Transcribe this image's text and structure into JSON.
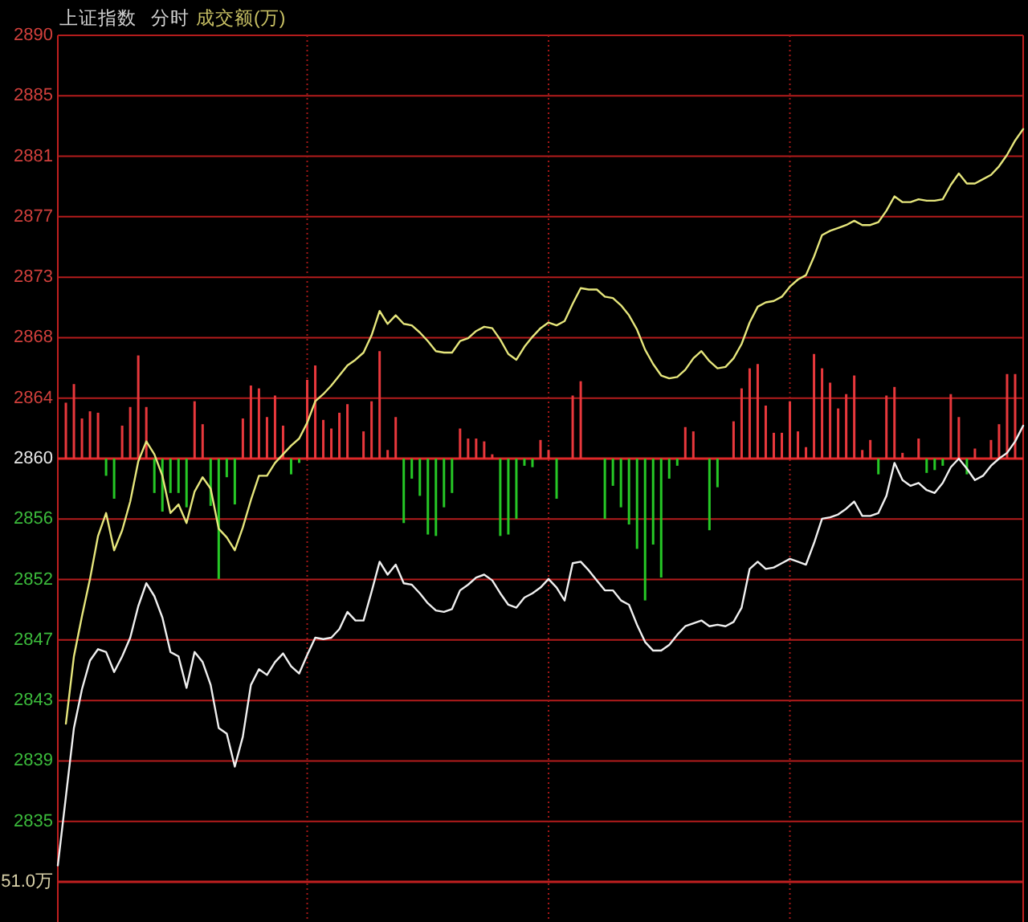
{
  "chart_data": {
    "type": "line",
    "title": "上证指数",
    "subtitle": "分时",
    "annotations": [
      "成交额(万)",
      "51.0万"
    ],
    "categories": [
      null,
      null,
      null,
      null,
      null,
      null,
      null,
      null,
      null,
      null,
      null,
      null,
      null,
      null,
      null,
      null,
      null,
      null,
      null,
      null,
      null,
      null,
      null,
      null,
      null,
      null,
      null,
      null,
      null,
      null,
      null,
      null,
      null,
      null,
      null,
      null,
      null,
      null,
      null,
      null,
      null,
      null,
      null,
      null,
      null,
      null,
      null,
      null,
      null,
      null,
      null,
      null,
      null,
      null,
      null,
      null,
      null,
      null,
      null,
      null,
      null,
      null,
      null,
      null,
      null,
      null,
      null,
      null,
      null,
      null,
      null,
      null,
      null,
      null,
      null,
      null,
      null,
      null,
      null,
      null,
      null,
      null,
      null,
      null,
      null,
      null,
      null,
      null,
      null,
      null,
      null,
      null,
      null,
      null,
      null,
      null,
      null,
      null,
      null,
      null,
      null,
      null,
      null,
      null,
      null,
      null,
      null,
      null,
      null,
      null,
      null,
      null,
      null,
      null,
      null,
      null,
      null,
      null,
      null,
      null,
      null
    ],
    "ylim": [
      2830.46,
      2889.54
    ],
    "yticks": [
      {
        "value": 2889.54,
        "label": "2890"
      },
      {
        "value": 2885.32,
        "label": "2885"
      },
      {
        "value": 2881.1,
        "label": "2881"
      },
      {
        "value": 2876.88,
        "label": "2877"
      },
      {
        "value": 2872.66,
        "label": "2873"
      },
      {
        "value": 2868.44,
        "label": "2868"
      },
      {
        "value": 2864.22,
        "label": "2864"
      },
      2860,
      {
        "value": 2855.78,
        "label": "2856"
      },
      {
        "value": 2851.56,
        "label": "2852"
      },
      {
        "value": 2847.34,
        "label": "2847"
      },
      {
        "value": 2843.12,
        "label": "2843"
      },
      {
        "value": 2838.9,
        "label": "2839"
      },
      {
        "value": 2834.68,
        "label": "2835"
      }
    ],
    "tick_labels": "y",
    "grid": true,
    "ref_lines": [
      {
        "axis": "y",
        "value": 2860,
        "color": "#e02828"
      }
    ],
    "series": [
      {
        "type": "bar",
        "values": [
          null,
          3.9,
          5.2,
          2.8,
          3.3,
          3.2,
          -1.2,
          -2.8,
          2.3,
          3.6,
          7.2,
          3.6,
          -2.4,
          -3.7,
          -2.4,
          -2.4,
          -3.4,
          4.0,
          2.4,
          -3.3,
          -8.4,
          -1.3,
          -3.2,
          2.8,
          5.1,
          4.9,
          2.9,
          4.4,
          2.3,
          -1.1,
          -0.3,
          5.5,
          6.5,
          2.7,
          2.1,
          3.2,
          3.8,
          null,
          1.9,
          4.0,
          7.5,
          0.6,
          2.9,
          -4.5,
          -1.4,
          -2.6,
          -5.3,
          -5.4,
          -3.4,
          -2.4,
          2.1,
          1.4,
          1.4,
          1.2,
          0.3,
          -5.4,
          -5.3,
          -4.2,
          -0.5,
          -0.6,
          1.3,
          0.6,
          -2.8,
          null,
          4.4,
          5.4,
          null,
          null,
          -4.2,
          -1.9,
          -3.4,
          -4.6,
          -6.3,
          -9.9,
          -6.0,
          -8.3,
          -1.4,
          -0.5,
          2.2,
          1.9,
          null,
          -5.0,
          -2.0,
          null,
          2.6,
          4.9,
          6.3,
          6.6,
          3.7,
          1.8,
          1.8,
          4.0,
          1.9,
          0.8,
          7.3,
          6.3,
          5.3,
          3.5,
          4.5,
          5.8,
          0.6,
          1.3,
          -1.1,
          4.4,
          5.0,
          0.4,
          null,
          1.4,
          -1.0,
          -0.8,
          -0.5,
          4.5,
          2.9,
          -1.1,
          0.7,
          null,
          1.3,
          2.4,
          5.9,
          5.9,
          null
        ],
        "base": [
          null,
          2860,
          2860,
          2860,
          2860,
          2860,
          2860,
          2860,
          2860,
          2860,
          2860,
          2860,
          2860,
          2860,
          2860,
          2860,
          2860,
          2860,
          2860,
          2860,
          2860,
          2860,
          2860,
          2860,
          2860,
          2860,
          2860,
          2860,
          2860,
          2860,
          2860,
          2860,
          2860,
          2860,
          2860,
          2860,
          2860,
          null,
          2860,
          2860,
          2860,
          2860,
          2860,
          2860,
          2860,
          2860,
          2860,
          2860,
          2860,
          2860,
          2860,
          2860,
          2860,
          2860,
          2860,
          2860,
          2860,
          2860,
          2860,
          2860,
          2860,
          2860,
          2860,
          null,
          2860,
          2860,
          null,
          null,
          2860,
          2860,
          2860,
          2860,
          2860,
          2860,
          2860,
          2860,
          2860,
          2860,
          2860,
          2860,
          null,
          2860,
          2860,
          null,
          2860,
          2860,
          2860,
          2860,
          2860,
          2860,
          2860,
          2860,
          2860,
          2860,
          2860,
          2860,
          2860,
          2860,
          2860,
          2860,
          2860,
          2860,
          2860,
          2860,
          2860,
          2860,
          null,
          2860,
          2860,
          2860,
          2860,
          2860,
          2860,
          2860,
          2860,
          null,
          2860,
          2860,
          2860,
          2860,
          null
        ],
        "colors": [
          null,
          "#e8383c",
          "#e8383c",
          "#e8383c",
          "#e8383c",
          "#e8383c",
          "#26c826",
          "#26c826",
          "#e8383c",
          "#e8383c",
          "#e8383c",
          "#e8383c",
          "#26c826",
          "#26c826",
          "#26c826",
          "#26c826",
          "#26c826",
          "#e8383c",
          "#e8383c",
          "#26c826",
          "#26c826",
          "#26c826",
          "#26c826",
          "#e8383c",
          "#e8383c",
          "#e8383c",
          "#e8383c",
          "#e8383c",
          "#e8383c",
          "#26c826",
          "#26c826",
          "#e8383c",
          "#e8383c",
          "#e8383c",
          "#e8383c",
          "#e8383c",
          "#e8383c",
          null,
          "#e8383c",
          "#e8383c",
          "#e8383c",
          "#e8383c",
          "#e8383c",
          "#26c826",
          "#26c826",
          "#26c826",
          "#26c826",
          "#26c826",
          "#26c826",
          "#26c826",
          "#e8383c",
          "#e8383c",
          "#e8383c",
          "#e8383c",
          "#e8383c",
          "#26c826",
          "#26c826",
          "#26c826",
          "#26c826",
          "#26c826",
          "#e8383c",
          "#e8383c",
          "#26c826",
          null,
          "#e8383c",
          "#e8383c",
          null,
          null,
          "#26c826",
          "#26c826",
          "#26c826",
          "#26c826",
          "#26c826",
          "#26c826",
          "#26c826",
          "#26c826",
          "#26c826",
          "#26c826",
          "#e8383c",
          "#e8383c",
          null,
          "#26c826",
          "#26c826",
          null,
          "#e8383c",
          "#e8383c",
          "#e8383c",
          "#e8383c",
          "#e8383c",
          "#e8383c",
          "#e8383c",
          "#e8383c",
          "#e8383c",
          "#e8383c",
          "#e8383c",
          "#e8383c",
          "#e8383c",
          "#e8383c",
          "#e8383c",
          "#e8383c",
          "#e8383c",
          "#e8383c",
          "#26c826",
          "#e8383c",
          "#e8383c",
          "#e8383c",
          null,
          "#e8383c",
          "#26c826",
          "#26c826",
          "#26c826",
          "#e8383c",
          "#e8383c",
          "#26c826",
          "#e8383c",
          null,
          "#e8383c",
          "#e8383c",
          "#e8383c",
          "#e8383c",
          null
        ]
      },
      {
        "color": "#f0f0f0",
        "values": [
          2831.6,
          2836.4,
          2841.2,
          2843.9,
          2845.9,
          2846.7,
          2846.5,
          2845.1,
          2846.2,
          2847.5,
          2849.7,
          2851.3,
          2850.4,
          2848.9,
          2846.5,
          2846.2,
          2844.0,
          2846.5,
          2845.8,
          2844.2,
          2841.2,
          2840.8,
          2838.5,
          2840.6,
          2844.2,
          2845.3,
          2844.9,
          2845.8,
          2846.4,
          2845.5,
          2845.0,
          2846.3,
          2847.5,
          2847.4,
          2847.5,
          2848.1,
          2849.3,
          2848.7,
          2848.7,
          2850.7,
          2852.8,
          2851.9,
          2852.6,
          2851.3,
          2851.2,
          2850.6,
          2849.9,
          2849.4,
          2849.3,
          2849.5,
          2850.8,
          2851.2,
          2851.7,
          2851.9,
          2851.5,
          2850.6,
          2849.8,
          2849.6,
          2850.3,
          2850.6,
          2851.0,
          2851.6,
          2851.0,
          2850.1,
          2852.7,
          2852.8,
          2852.2,
          2851.5,
          2850.8,
          2850.8,
          2850.1,
          2849.8,
          2848.4,
          2847.2,
          2846.6,
          2846.6,
          2847.0,
          2847.7,
          2848.3,
          2848.5,
          2848.7,
          2848.3,
          2848.4,
          2848.3,
          2848.6,
          2849.6,
          2852.3,
          2852.8,
          2852.3,
          2852.4,
          2852.7,
          2853.0,
          2852.8,
          2852.6,
          2854.1,
          2855.8,
          2855.9,
          2856.1,
          2856.5,
          2857.0,
          2856.0,
          2856.0,
          2856.2,
          2857.4,
          2859.7,
          2858.5,
          2858.1,
          2858.3,
          2857.8,
          2857.6,
          2858.3,
          2859.4,
          2860.0,
          2859.3,
          2858.5,
          2858.8,
          2859.5,
          2860.0,
          2860.4,
          2861.2,
          2862.3
        ]
      },
      {
        "color": "#e6e67c",
        "values": [
          null,
          2841.5,
          2846.2,
          2849.0,
          2851.6,
          2854.6,
          2856.2,
          2853.6,
          2855.0,
          2857.0,
          2859.8,
          2861.2,
          2860.3,
          2858.8,
          2856.2,
          2856.8,
          2855.5,
          2857.7,
          2858.7,
          2857.9,
          2855.1,
          2854.5,
          2853.6,
          2855.2,
          2857.1,
          2858.8,
          2858.8,
          2859.7,
          2860.3,
          2860.9,
          2861.4,
          2862.5,
          2864.0,
          2864.5,
          2865.1,
          2865.8,
          2866.5,
          2866.9,
          2867.4,
          2868.6,
          2870.3,
          2869.4,
          2870.0,
          2869.4,
          2869.3,
          2868.8,
          2868.2,
          2867.5,
          2867.4,
          2867.4,
          2868.2,
          2868.4,
          2868.9,
          2869.2,
          2869.1,
          2868.3,
          2867.3,
          2866.9,
          2867.8,
          2868.5,
          2869.1,
          2869.5,
          2869.3,
          2869.6,
          2870.8,
          2871.9,
          2871.8,
          2871.8,
          2871.3,
          2871.2,
          2870.7,
          2870.0,
          2869.0,
          2867.6,
          2866.6,
          2865.8,
          2865.6,
          2865.7,
          2866.2,
          2867.0,
          2867.5,
          2866.8,
          2866.3,
          2866.4,
          2867.0,
          2868.0,
          2869.5,
          2870.6,
          2870.9,
          2871.0,
          2871.3,
          2872.0,
          2872.5,
          2872.8,
          2874.1,
          2875.6,
          2875.9,
          2876.1,
          2876.3,
          2876.6,
          2876.3,
          2876.3,
          2876.5,
          2877.3,
          2878.3,
          2877.9,
          2877.9,
          2878.1,
          2878.0,
          2878.0,
          2878.1,
          2879.1,
          2879.9,
          2879.2,
          2879.2,
          2879.5,
          2879.8,
          2880.4,
          2881.2,
          2882.2,
          2883.0
        ]
      }
    ]
  }
}
